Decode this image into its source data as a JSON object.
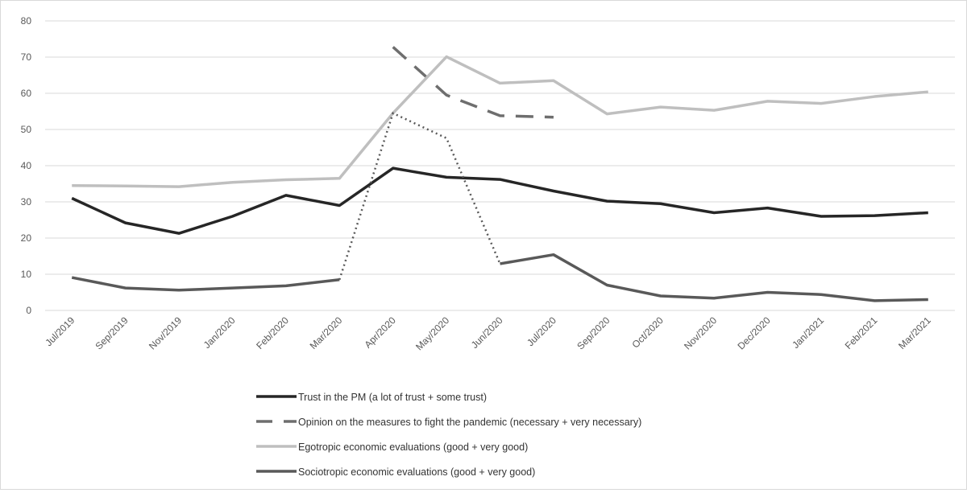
{
  "chart_data": {
    "type": "line",
    "title": "",
    "xlabel": "",
    "ylabel": "",
    "ylim": [
      0,
      80
    ],
    "yticks": [
      0,
      10,
      20,
      30,
      40,
      50,
      60,
      70,
      80
    ],
    "grid": true,
    "legend_position": "bottom",
    "categories": [
      "Jul/2019",
      "Sep/2019",
      "Nov/2019",
      "Jan/2020",
      "Feb/2020",
      "Mar/2020",
      "Apr/2020",
      "May/2020",
      "Jun/2020",
      "Jul/2020",
      "Sep/2020",
      "Oct/2020",
      "Nov/2020",
      "Dec/2020",
      "Jan/2021",
      "Feb/2021",
      "Mar/2021"
    ],
    "series": [
      {
        "name": "Trust in the PM (a lot of trust + some trust)",
        "color": "#262626",
        "style": "solid",
        "values": [
          31,
          24.2,
          21.3,
          26,
          31.8,
          29,
          39.3,
          36.8,
          36.2,
          33,
          30.2,
          29.5,
          27,
          28.3,
          26,
          26.2,
          27
        ]
      },
      {
        "name": "Opinion on the measures to fight the pandemic (necessary + very necessary)",
        "color": "#6e6e6e",
        "style": "dashed",
        "values": [
          null,
          null,
          null,
          null,
          null,
          null,
          72.8,
          59.5,
          53.8,
          53.4,
          null,
          null,
          null,
          null,
          null,
          null,
          null
        ]
      },
      {
        "name": "Egotropic economic evaluations (good + very good)",
        "color": "#bfbfbf",
        "style": "solid",
        "values": [
          34.5,
          34.4,
          34.2,
          35.4,
          36.1,
          36.5,
          54.5,
          70.1,
          62.8,
          63.5,
          54.3,
          56.2,
          55.3,
          57.8,
          57.2,
          59.1,
          60.4
        ]
      },
      {
        "name": "Sociotropic economic evaluations (good + very good)",
        "color": "#595959",
        "style": "solid",
        "gap_style": "dotted",
        "values": [
          9.1,
          6.2,
          5.6,
          6.2,
          6.8,
          8.5,
          54.5,
          47.6,
          12.9,
          15.4,
          7,
          4,
          3.4,
          5,
          4.4,
          2.7,
          3
        ]
      }
    ]
  }
}
